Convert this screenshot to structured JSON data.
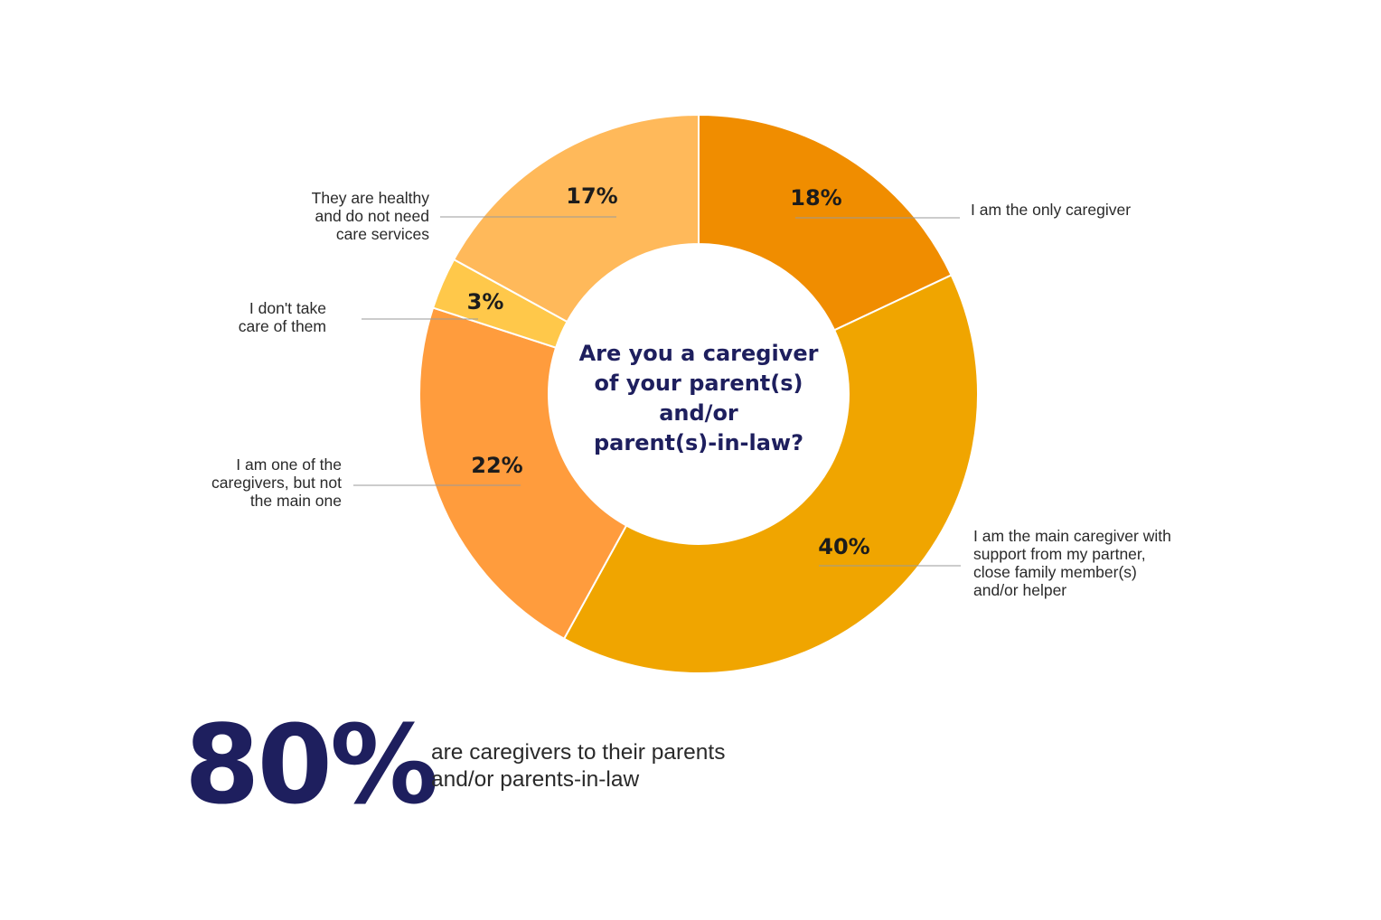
{
  "chart_data": {
    "type": "pie",
    "donut": true,
    "center_title": [
      "Are you a caregiver",
      "of your parent(s)",
      "and/or",
      "parent(s)-in-law?"
    ],
    "slices": [
      {
        "label": [
          "I am the only caregiver"
        ],
        "value": 18,
        "value_label": "18%",
        "color": "#F08D00"
      },
      {
        "label": [
          "I am the main caregiver with",
          "support from my partner,",
          "close family member(s)",
          "and/or helper"
        ],
        "value": 40,
        "value_label": "40%",
        "color": "#F0A500"
      },
      {
        "label": [
          "I am one of the",
          "caregivers, but not",
          "the main one"
        ],
        "value": 22,
        "value_label": "22%",
        "color": "#FF9C3D"
      },
      {
        "label": [
          "I don't take",
          "care of them"
        ],
        "value": 3,
        "value_label": "3%",
        "color": "#FFC84A"
      },
      {
        "label": [
          "They are healthy",
          "and do not need",
          "care services"
        ],
        "value": 17,
        "value_label": "17%",
        "color": "#FFB95A"
      }
    ],
    "legend": "none"
  },
  "stat": {
    "value": "80%",
    "description": [
      "are caregivers to their parents",
      "and/or parents-in-law"
    ]
  }
}
